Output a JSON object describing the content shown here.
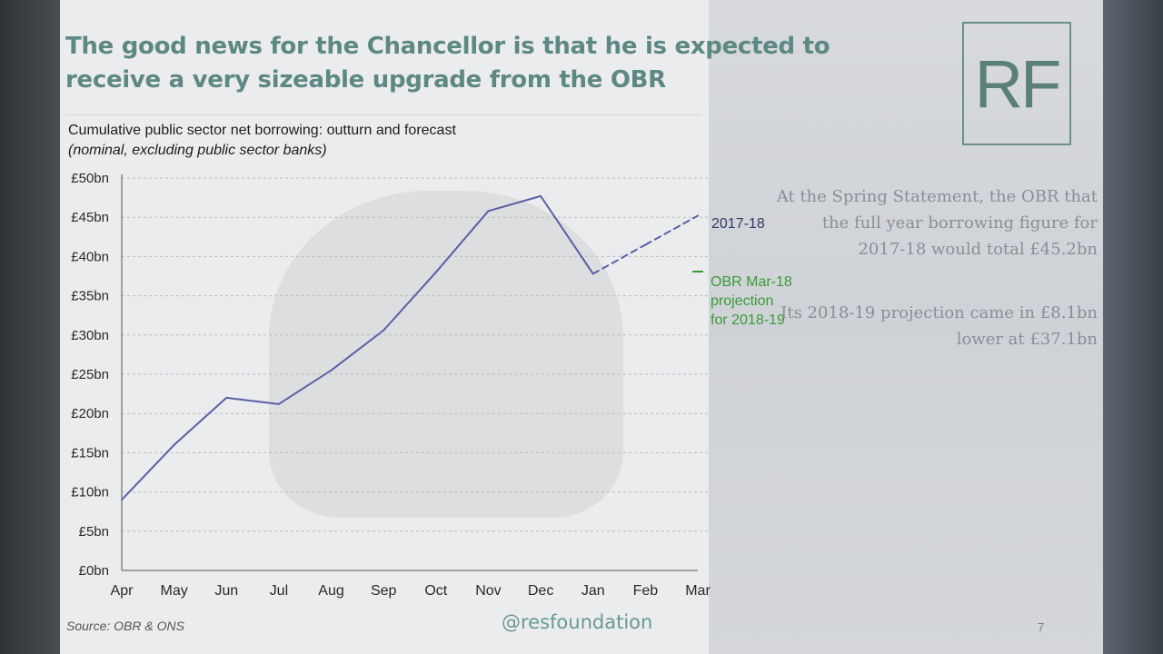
{
  "slide": {
    "title": "The good news for the Chancellor is that he is expected to receive a very sizeable upgrade from the OBR",
    "logo_text": "RF",
    "handle": "@resfoundation",
    "slide_number": "7"
  },
  "notes": {
    "para1": "At the Spring Statement, the OBR that the full year borrowing figure for 2017-18 would total £45.2bn",
    "para2": "Its 2018-19 projection came in £8.1bn lower at £37.1bn"
  },
  "chart_data": {
    "type": "line",
    "title": "Cumulative public sector net borrowing: outturn and forecast",
    "subtitle": "(nominal, excluding public sector banks)",
    "categories": [
      "Apr",
      "May",
      "Jun",
      "Jul",
      "Aug",
      "Sep",
      "Oct",
      "Nov",
      "Dec",
      "Jan",
      "Feb",
      "Mar"
    ],
    "y_ticks": [
      "£0bn",
      "£5bn",
      "£10bn",
      "£15bn",
      "£20bn",
      "£25bn",
      "£30bn",
      "£35bn",
      "£40bn",
      "£45bn",
      "£50bn"
    ],
    "ylim": [
      0,
      50
    ],
    "grid": true,
    "series": [
      {
        "name": "2017-18",
        "color": "#5b5fa3",
        "values": [
          9.0,
          16.0,
          22.0,
          21.2,
          25.5,
          30.6,
          38.0,
          45.8,
          47.7,
          37.8,
          41.5,
          45.2
        ],
        "style": [
          "solid",
          "solid",
          "solid",
          "solid",
          "solid",
          "solid",
          "solid",
          "solid",
          "solid",
          "solid",
          "dashed",
          "dashed"
        ]
      }
    ],
    "legend": {
      "series_label": "2017-18",
      "obr_label": "OBR Mar-18 projection for 2018-19",
      "obr_color": "#3a9a3a"
    },
    "source": "Source: OBR & ONS"
  }
}
